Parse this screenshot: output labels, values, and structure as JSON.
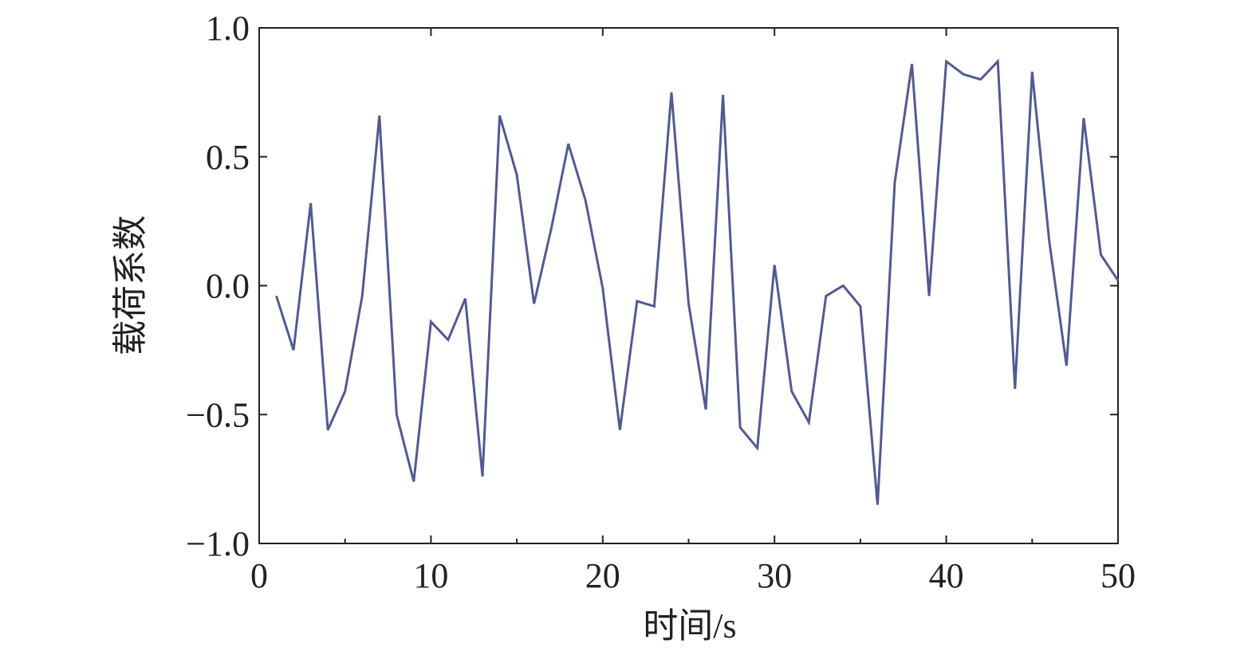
{
  "chart_data": {
    "type": "line",
    "x_label": "时间/s",
    "y_label": "载荷系数",
    "x": [
      1,
      2,
      3,
      4,
      5,
      6,
      7,
      8,
      9,
      10,
      11,
      12,
      13,
      14,
      15,
      16,
      17,
      18,
      19,
      20,
      21,
      22,
      23,
      24,
      25,
      26,
      27,
      28,
      29,
      30,
      31,
      32,
      33,
      34,
      35,
      36,
      37,
      38,
      39,
      40,
      41,
      42,
      43,
      44,
      45,
      46,
      47,
      48,
      49,
      50
    ],
    "values": [
      -0.04,
      -0.25,
      0.32,
      -0.56,
      -0.41,
      -0.04,
      0.66,
      -0.5,
      -0.76,
      -0.14,
      -0.21,
      -0.05,
      -0.74,
      0.66,
      0.43,
      -0.07,
      0.22,
      0.55,
      0.33,
      -0.01,
      -0.56,
      -0.06,
      -0.08,
      0.75,
      -0.07,
      -0.48,
      0.74,
      -0.55,
      -0.63,
      0.08,
      -0.41,
      -0.53,
      -0.04,
      0.0,
      -0.08,
      -0.85,
      0.4,
      0.86,
      -0.04,
      0.87,
      0.82,
      0.8,
      0.87,
      -0.4,
      0.83,
      0.17,
      -0.31,
      0.65,
      0.12,
      0.02
    ],
    "color": "#525a92",
    "xlim": [
      0,
      50
    ],
    "xticks": [
      0,
      10,
      20,
      30,
      40,
      50
    ],
    "ylim": [
      -1.0,
      1.0
    ],
    "yticks": [
      {
        "value": -1.0,
        "label": "−1.0"
      },
      {
        "value": -0.5,
        "label": "−0.5"
      },
      {
        "value": 0.0,
        "label": "0.0"
      },
      {
        "value": 0.5,
        "label": "0.5"
      },
      {
        "value": 1.0,
        "label": "1.0"
      }
    ],
    "grid": false
  }
}
